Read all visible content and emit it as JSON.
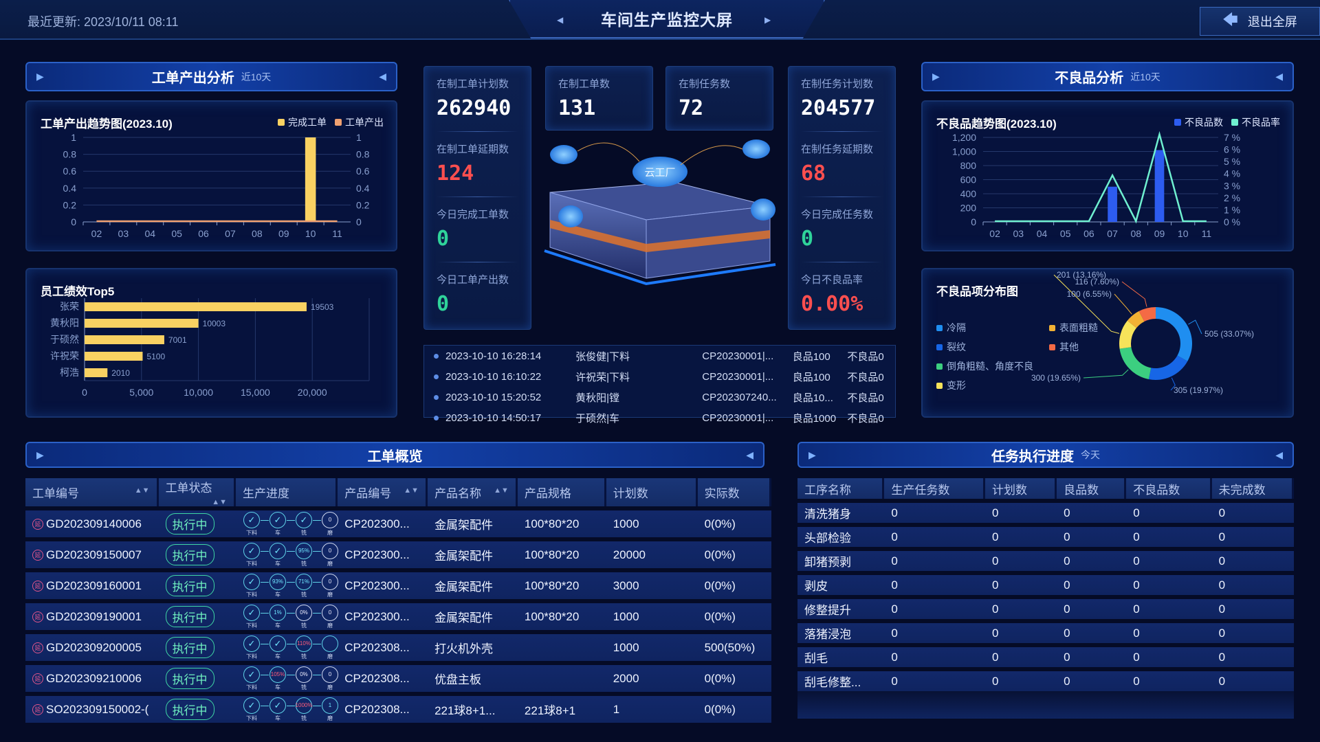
{
  "header": {
    "last_update": "最近更新: 2023/10/11 08:11",
    "title": "车间生产监控大屏",
    "exit_label": "退出全屏"
  },
  "colors": {
    "accent": "#2b61c8",
    "yellow": "#f9d162",
    "orange": "#f0a070",
    "blue_bar": "#2d5cf0",
    "teal_line": "#6ff0d0",
    "red": "#ff4f4f",
    "green": "#2fd39a"
  },
  "left": {
    "section_title": "工单产出分析",
    "section_sub": "近10天",
    "employee_title": "员工绩效Top5"
  },
  "right": {
    "section_title": "不良品分析",
    "section_sub": "近10天",
    "pie_title": "不良品项分布图"
  },
  "stats": {
    "col1": [
      {
        "label": "在制工单计划数",
        "value": "262940"
      },
      {
        "label": "在制工单延期数",
        "value": "124"
      },
      {
        "label": "今日完成工单数",
        "value": "0"
      },
      {
        "label": "今日工单产出数",
        "value": "0"
      }
    ],
    "mid": [
      {
        "label": "在制工单数",
        "value": "131"
      },
      {
        "label": "在制任务数",
        "value": "72"
      }
    ],
    "col4": [
      {
        "label": "在制任务计划数",
        "value": "204577"
      },
      {
        "label": "在制任务延期数",
        "value": "68"
      },
      {
        "label": "今日完成任务数",
        "value": "0"
      },
      {
        "label": "今日不良品率",
        "value": "0.00%"
      }
    ],
    "cloud_label": "云工厂"
  },
  "logs": [
    {
      "time": "2023-10-10 16:28:14",
      "who": "张俊健|下料",
      "product": "CP20230001|...",
      "good": "良品100",
      "bad": "不良品0"
    },
    {
      "time": "2023-10-10 16:10:22",
      "who": "许祝荣|下料",
      "product": "CP20230001|...",
      "good": "良品100",
      "bad": "不良品0"
    },
    {
      "time": "2023-10-10 15:20:52",
      "who": "黄秋阳|镗",
      "product": "CP202307240...",
      "good": "良品10...",
      "bad": "不良品0"
    },
    {
      "time": "2023-10-10 14:50:17",
      "who": "于硕然|车",
      "product": "CP20230001|...",
      "good": "良品1000",
      "bad": "不良品0"
    }
  ],
  "workorders": {
    "title": "工单概览",
    "columns": [
      "工单编号",
      "工单状态",
      "生产进度",
      "产品编号",
      "产品名称",
      "产品规格",
      "计划数",
      "实际数"
    ],
    "delay_icon_text": "延",
    "step_labels": [
      "下料",
      "车",
      "铣",
      "磨"
    ],
    "rows": [
      {
        "id": "GD202309140006",
        "status": "执行中",
        "steps": [
          "✓",
          "✓",
          "✓",
          "0"
        ],
        "code": "CP202300...",
        "name": "金属架配件",
        "spec": "100*80*20",
        "plan": "1000",
        "actual": "0(0%)"
      },
      {
        "id": "GD202309150007",
        "status": "执行中",
        "steps": [
          "✓",
          "✓",
          "95%",
          "0"
        ],
        "code": "CP202300...",
        "name": "金属架配件",
        "spec": "100*80*20",
        "plan": "20000",
        "actual": "0(0%)"
      },
      {
        "id": "GD202309160001",
        "status": "执行中",
        "steps": [
          "✓",
          "93%",
          "71%",
          "0"
        ],
        "code": "CP202300...",
        "name": "金属架配件",
        "spec": "100*80*20",
        "plan": "3000",
        "actual": "0(0%)"
      },
      {
        "id": "GD202309190001",
        "status": "执行中",
        "steps": [
          "✓",
          "1%",
          "0%",
          "0"
        ],
        "code": "CP202300...",
        "name": "金属架配件",
        "spec": "100*80*20",
        "plan": "1000",
        "actual": "0(0%)"
      },
      {
        "id": "GD202309200005",
        "status": "执行中",
        "steps": [
          "✓",
          "✓",
          "110%",
          ""
        ],
        "code": "CP202308...",
        "name": "打火机外壳",
        "spec": "",
        "plan": "1000",
        "actual": "500(50%)"
      },
      {
        "id": "GD202309210006",
        "status": "执行中",
        "steps": [
          "✓",
          "105%",
          "0%",
          "0"
        ],
        "code": "CP202308...",
        "name": "优盘主板",
        "spec": "",
        "plan": "2000",
        "actual": "0(0%)"
      },
      {
        "id": "SO202309150002-(",
        "status": "执行中",
        "steps": [
          "✓",
          "✓",
          "1000%",
          "1"
        ],
        "code": "CP202308...",
        "name": "221球8+1...",
        "spec": "221球8+1",
        "plan": "1",
        "actual": "0(0%)"
      }
    ]
  },
  "tasks": {
    "title": "任务执行进度",
    "sub": "今天",
    "columns": [
      "工序名称",
      "生产任务数",
      "计划数",
      "良品数",
      "不良品数",
      "未完成数"
    ],
    "rows": [
      [
        "清洗猪身",
        "0",
        "0",
        "0",
        "0",
        "0"
      ],
      [
        "头部检验",
        "0",
        "0",
        "0",
        "0",
        "0"
      ],
      [
        "卸猪预剥",
        "0",
        "0",
        "0",
        "0",
        "0"
      ],
      [
        "剥皮",
        "0",
        "0",
        "0",
        "0",
        "0"
      ],
      [
        "修整提升",
        "0",
        "0",
        "0",
        "0",
        "0"
      ],
      [
        "落猪浸泡",
        "0",
        "0",
        "0",
        "0",
        "0"
      ],
      [
        "刮毛",
        "0",
        "0",
        "0",
        "0",
        "0"
      ],
      [
        "刮毛修整...",
        "0",
        "0",
        "0",
        "0",
        "0"
      ]
    ]
  },
  "chart_data": [
    {
      "type": "bar",
      "title": "工单产出趋势图(2023.10)",
      "categories": [
        "02",
        "03",
        "04",
        "05",
        "06",
        "07",
        "08",
        "09",
        "10",
        "11"
      ],
      "series": [
        {
          "name": "完成工单",
          "type": "bar",
          "color": "#f9d162",
          "values": [
            0,
            0,
            0,
            0,
            0,
            0,
            0,
            0,
            1,
            0
          ]
        },
        {
          "name": "工单产出",
          "type": "line",
          "color": "#f0a070",
          "values": [
            0,
            0,
            0,
            0,
            0,
            0,
            0,
            0,
            0,
            0
          ]
        }
      ],
      "ylim": [
        0,
        1
      ],
      "yticks": [
        "0",
        "0.2",
        "0.4",
        "0.6",
        "0.8",
        "1"
      ],
      "y2ticks": [
        "0",
        "0.2",
        "0.4",
        "0.6",
        "0.8",
        "1"
      ],
      "legend": "top-right",
      "grid": true
    },
    {
      "type": "bar",
      "orientation": "horizontal",
      "title": "员工绩效Top5",
      "categories": [
        "张荣",
        "黄秋阳",
        "于硕然",
        "许祝荣",
        "柯浩"
      ],
      "values": [
        19503,
        10003,
        7001,
        5100,
        2010
      ],
      "color": "#f9d162",
      "xlim": [
        0,
        25000
      ],
      "xticks": [
        "0",
        "5,000",
        "10,000",
        "15,000",
        "20,000"
      ],
      "grid": true
    },
    {
      "type": "bar",
      "title": "不良品趋势图(2023.10)",
      "categories": [
        "02",
        "03",
        "04",
        "05",
        "06",
        "07",
        "08",
        "09",
        "10",
        "11"
      ],
      "series": [
        {
          "name": "不良品数",
          "type": "bar",
          "color": "#2d5cf0",
          "values": [
            0,
            0,
            0,
            0,
            0,
            500,
            0,
            1020,
            0,
            0
          ]
        },
        {
          "name": "不良品率",
          "type": "line",
          "color": "#6ff0d0",
          "values": [
            0,
            0,
            0,
            0,
            0,
            3.8,
            0,
            7.2,
            0,
            0
          ]
        }
      ],
      "ylim": [
        0,
        1200
      ],
      "y2lim": [
        0,
        7
      ],
      "yticks": [
        "0",
        "200",
        "400",
        "600",
        "800",
        "1,000",
        "1,200"
      ],
      "y2ticks": [
        "0 %",
        "1 %",
        "2 %",
        "3 %",
        "4 %",
        "5 %",
        "6 %",
        "7 %"
      ],
      "legend": "top-right",
      "grid": true
    },
    {
      "type": "pie",
      "title": "不良品项分布图",
      "donut": true,
      "legend": "left",
      "slices": [
        {
          "name": "冷隔",
          "value": 505,
          "label": "505 (33.07%)",
          "color": "#1f8ef0"
        },
        {
          "name": "裂纹",
          "value": 305,
          "label": "305 (19.97%)",
          "color": "#1766e6"
        },
        {
          "name": "倒角粗糙、角度不良",
          "value": 300,
          "label": "300 (19.65%)",
          "color": "#3ccf80"
        },
        {
          "name": "变形",
          "value": 201,
          "label": "201 (13.16%)",
          "color": "#f7e35a"
        },
        {
          "name": "表面粗糙",
          "value": 100,
          "label": "100 (6.55%)",
          "color": "#f2b134"
        },
        {
          "name": "其他",
          "value": 116,
          "label": "116 (7.60%)",
          "color": "#f46a45"
        }
      ]
    }
  ]
}
